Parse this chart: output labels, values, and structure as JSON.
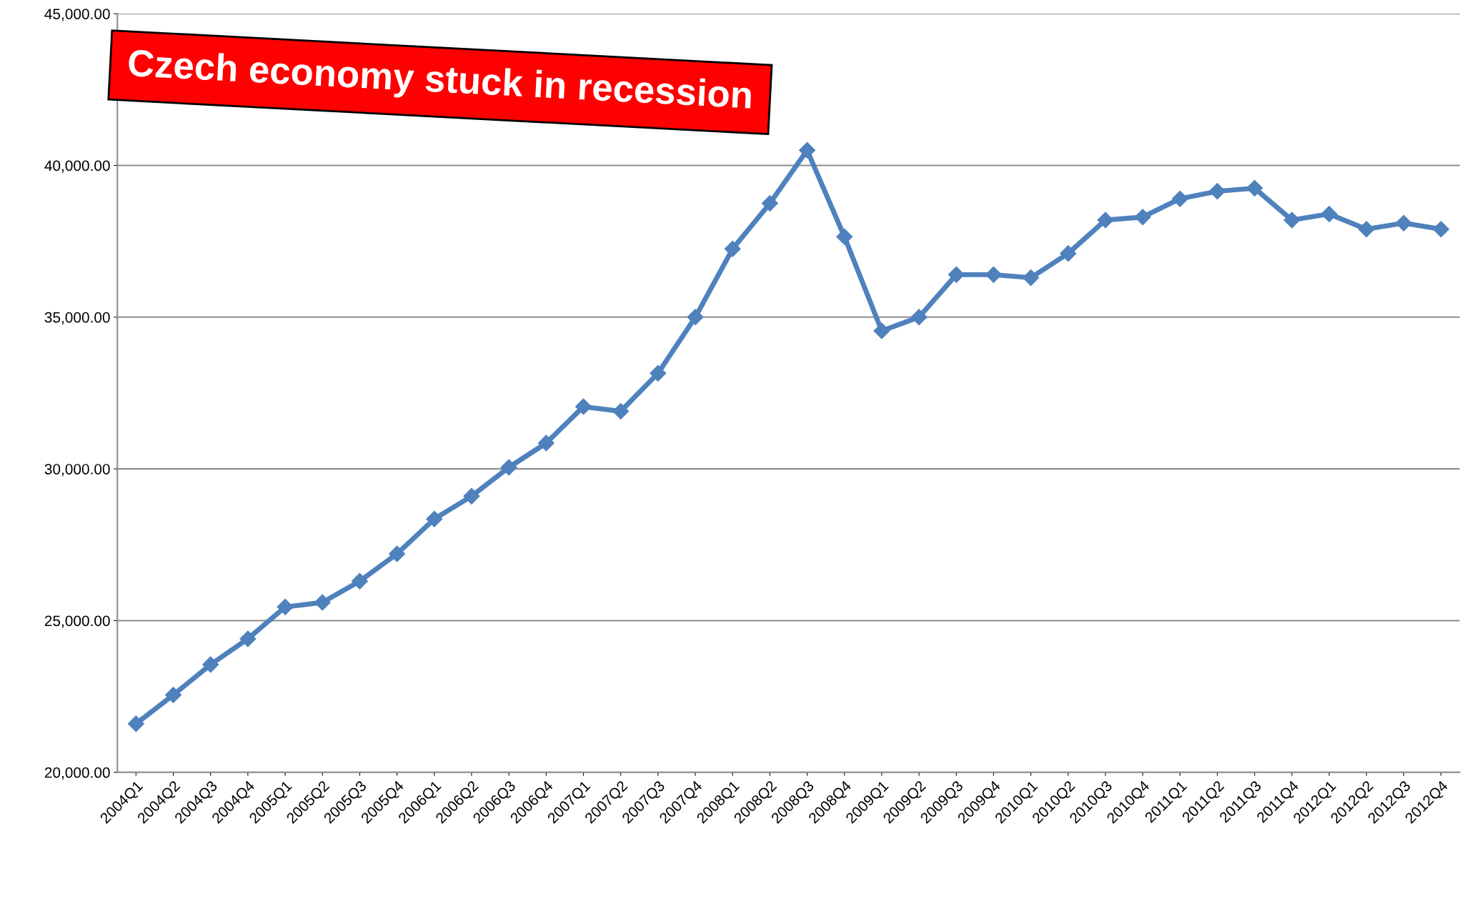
{
  "chart_data": {
    "type": "line",
    "categories": [
      "2004Q1",
      "2004Q2",
      "2004Q3",
      "2004Q4",
      "2005Q1",
      "2005Q2",
      "2005Q3",
      "2005Q4",
      "2006Q1",
      "2006Q2",
      "2006Q3",
      "2006Q4",
      "2007Q1",
      "2007Q2",
      "2007Q3",
      "2007Q4",
      "2008Q1",
      "2008Q2",
      "2008Q3",
      "2008Q4",
      "2009Q1",
      "2009Q2",
      "2009Q3",
      "2009Q4",
      "2010Q1",
      "2010Q2",
      "2010Q3",
      "2010Q4",
      "2011Q1",
      "2011Q2",
      "2011Q3",
      "2011Q4",
      "2012Q1",
      "2012Q2",
      "2012Q3",
      "2012Q4"
    ],
    "series": [
      {
        "color": "#4f81bd",
        "values": [
          21600,
          22550,
          23550,
          24400,
          25450,
          25600,
          26300,
          27200,
          28350,
          29100,
          30050,
          30850,
          32050,
          31900,
          33150,
          35000,
          37250,
          38750,
          40500,
          37650,
          34550,
          35000,
          36400,
          36400,
          36300,
          37100,
          38200,
          38300,
          38900,
          39150,
          39250,
          38200,
          38400,
          37900,
          38100,
          37900
        ]
      }
    ],
    "ylim": [
      20000,
      45000
    ],
    "yticks": [
      {
        "value": 20000,
        "label": "20,000.00"
      },
      {
        "value": 25000,
        "label": "25,000.00"
      },
      {
        "value": 30000,
        "label": "30,000.00"
      },
      {
        "value": 35000,
        "label": "35,000.00"
      },
      {
        "value": 40000,
        "label": "40,000.00"
      },
      {
        "value": 45000,
        "label": "45,000.00"
      }
    ],
    "grid": "y",
    "marker": "diamond",
    "line_style": "solid",
    "annotations": [
      "Czech economy stuck in recession"
    ]
  }
}
